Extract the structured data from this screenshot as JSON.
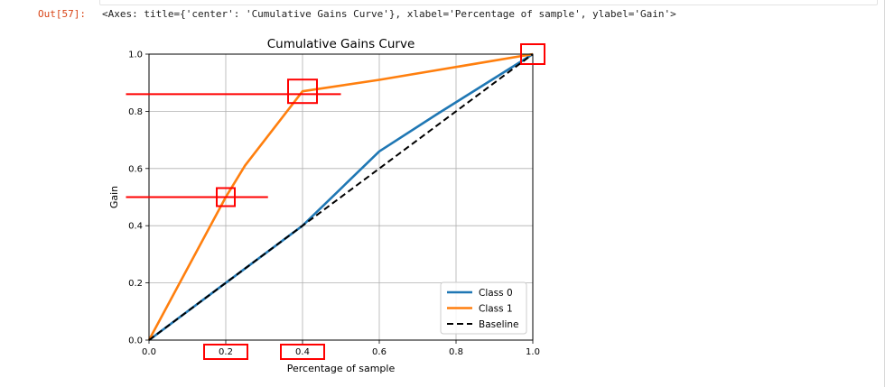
{
  "notebook": {
    "prompt": "Out[57]:",
    "output_repr": "<Axes: title={'center': 'Cumulative Gains Curve'}, xlabel='Percentage of sample', ylabel='Gain'>"
  },
  "chart_data": {
    "type": "line",
    "title": "Cumulative Gains Curve",
    "xlabel": "Percentage of sample",
    "ylabel": "Gain",
    "xlim": [
      0.0,
      1.0
    ],
    "ylim": [
      0.0,
      1.0
    ],
    "x_ticks": [
      "0.0",
      "0.2",
      "0.4",
      "0.6",
      "0.8",
      "1.0"
    ],
    "y_ticks": [
      "0.0",
      "0.2",
      "0.4",
      "0.6",
      "0.8",
      "1.0"
    ],
    "grid": true,
    "legend_position": "lower-right",
    "series": [
      {
        "name": "Class 0",
        "color": "#1f77b4",
        "style": "solid",
        "x": [
          0.0,
          0.2,
          0.4,
          0.6,
          0.75,
          1.0
        ],
        "y": [
          0.0,
          0.2,
          0.4,
          0.66,
          0.79,
          1.0
        ]
      },
      {
        "name": "Class 1",
        "color": "#ff7f0e",
        "style": "solid",
        "x": [
          0.0,
          0.2,
          0.25,
          0.4,
          0.6,
          1.0
        ],
        "y": [
          0.0,
          0.5,
          0.61,
          0.87,
          0.91,
          1.0
        ]
      },
      {
        "name": "Baseline",
        "color": "#000000",
        "style": "dashed",
        "x": [
          0.0,
          1.0
        ],
        "y": [
          0.0,
          1.0
        ]
      }
    ],
    "annotations": {
      "color": "#ff0000",
      "boxes": [
        {
          "x": 1.0,
          "y": 1.0
        },
        {
          "x": 0.4,
          "y": 0.87
        },
        {
          "x": 0.2,
          "y": 0.5
        }
      ],
      "horizontal_lines": [
        {
          "y": 0.86,
          "x_start": -0.06,
          "x_end": 0.5
        },
        {
          "y": 0.5,
          "x_start": -0.06,
          "x_end": 0.31
        }
      ],
      "tick_label_boxes": [
        "0.2",
        "0.4"
      ]
    }
  }
}
